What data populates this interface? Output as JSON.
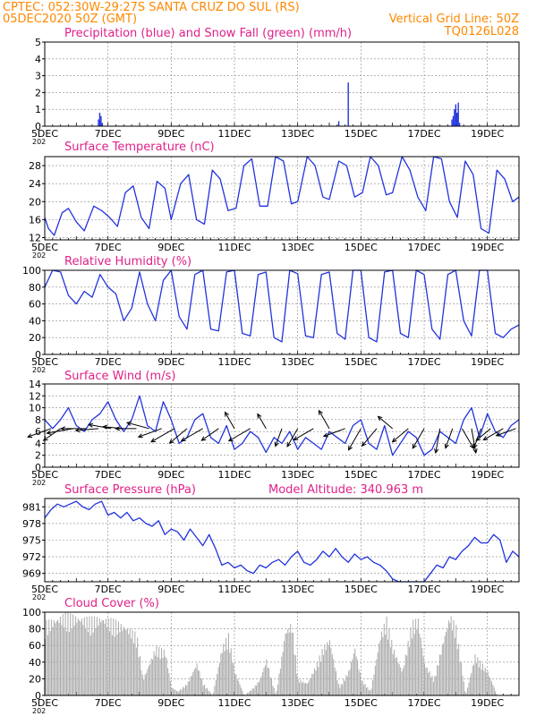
{
  "header": {
    "line1": "CPTEC:   052:30W-29:27S   SANTA CRUZ DO SUL (RS)",
    "line2_left": "05DEC2020 50Z (GMT)",
    "line2_right": "Vertical Grid Line: 50Z",
    "line3_right": "TQ0126L028",
    "color": "#ff8800"
  },
  "colors": {
    "title": "#e0208a",
    "line": "#2233dd",
    "snow": "#00aa00",
    "cloud": "#aaaaaa",
    "grid": "#888888"
  },
  "x_axis": {
    "tick_labels": [
      "5DEC",
      "7DEC",
      "9DEC",
      "11DEC",
      "13DEC",
      "15DEC",
      "17DEC",
      "19DEC"
    ],
    "tick_days": [
      0,
      2,
      4,
      6,
      8,
      10,
      12,
      14
    ],
    "year_fragment": "202",
    "range_days": [
      0,
      15
    ]
  },
  "chart_data": [
    {
      "id": "precip",
      "type": "bar",
      "title": "Precipitation (blue) and Snow Fall (green) (mm/h)",
      "ylim": [
        0,
        5
      ],
      "yticks": [
        0,
        1,
        2,
        3,
        4,
        5
      ],
      "ytick_labels": [
        "0",
        "1",
        "2",
        "3",
        "4",
        "5"
      ],
      "grid": true,
      "x_days": [
        1.7,
        1.74,
        1.78,
        1.82,
        9.3,
        9.6,
        12.88,
        12.92,
        12.96,
        13.0,
        13.04,
        13.08,
        13.12
      ],
      "values": [
        0.4,
        0.8,
        0.6,
        0.2,
        0.3,
        2.6,
        0.4,
        0.6,
        1.0,
        1.3,
        0.8,
        1.4,
        0.2
      ],
      "snow": []
    },
    {
      "id": "temp",
      "type": "line",
      "title": "Surface Temperature (nC)",
      "ylim": [
        11.5,
        30
      ],
      "yticks": [
        12,
        16,
        20,
        24,
        28
      ],
      "ytick_labels": [
        "12",
        "16",
        "20",
        "24",
        "28"
      ],
      "grid": true,
      "x_days": [
        0,
        0.12,
        0.3,
        0.55,
        0.75,
        1.0,
        1.25,
        1.55,
        1.8,
        2.05,
        2.3,
        2.55,
        2.8,
        3.05,
        3.3,
        3.55,
        3.8,
        4.0,
        4.3,
        4.55,
        4.8,
        5.05,
        5.3,
        5.55,
        5.8,
        6.05,
        6.3,
        6.55,
        6.8,
        7.05,
        7.3,
        7.55,
        7.8,
        8.0,
        8.3,
        8.55,
        8.8,
        9.0,
        9.3,
        9.55,
        9.8,
        10.05,
        10.3,
        10.55,
        10.8,
        11.0,
        11.3,
        11.55,
        11.8,
        12.05,
        12.3,
        12.55,
        12.8,
        13.05,
        13.3,
        13.55,
        13.8,
        14.05,
        14.3,
        14.55,
        14.8,
        15.0
      ],
      "values": [
        16.5,
        14.0,
        12.5,
        17.5,
        18.5,
        15.5,
        13.5,
        19.0,
        18.0,
        16.5,
        14.5,
        22.0,
        23.5,
        16.5,
        14.0,
        24.5,
        23.0,
        16.0,
        24.0,
        26.0,
        16.0,
        15.0,
        27.0,
        25.0,
        18.0,
        18.5,
        28.0,
        29.5,
        19.0,
        19.0,
        30.0,
        29.0,
        19.5,
        20.0,
        30.0,
        28.0,
        21.0,
        20.5,
        29.0,
        28.0,
        21.0,
        22.0,
        30.0,
        28.0,
        21.5,
        22.0,
        30.0,
        27.0,
        21.0,
        18.0,
        30.0,
        29.5,
        20.0,
        16.5,
        29.0,
        26.0,
        14.0,
        13.0,
        27.0,
        25.0,
        20.0,
        21.0
      ]
    },
    {
      "id": "rh",
      "type": "line",
      "title": "Relative Humidity (%)",
      "ylim": [
        0,
        100
      ],
      "yticks": [
        0,
        20,
        40,
        60,
        80,
        100
      ],
      "ytick_labels": [
        "0",
        "20",
        "40",
        "60",
        "80",
        "100"
      ],
      "grid": true,
      "x_days": [
        0,
        0.25,
        0.5,
        0.75,
        1.0,
        1.25,
        1.5,
        1.75,
        2.0,
        2.25,
        2.5,
        2.75,
        3.0,
        3.25,
        3.5,
        3.75,
        4.0,
        4.25,
        4.5,
        4.75,
        5.0,
        5.25,
        5.5,
        5.75,
        6.0,
        6.25,
        6.5,
        6.75,
        7.0,
        7.25,
        7.5,
        7.75,
        8.0,
        8.25,
        8.5,
        8.75,
        9.0,
        9.25,
        9.5,
        9.75,
        10.0,
        10.25,
        10.5,
        10.75,
        11.0,
        11.25,
        11.5,
        11.75,
        12.0,
        12.25,
        12.5,
        12.75,
        13.0,
        13.25,
        13.5,
        13.75,
        14.0,
        14.25,
        14.5,
        14.75,
        15.0
      ],
      "values": [
        80,
        100,
        98,
        70,
        60,
        75,
        68,
        95,
        80,
        72,
        40,
        55,
        98,
        60,
        40,
        88,
        100,
        45,
        30,
        95,
        100,
        30,
        28,
        98,
        100,
        25,
        22,
        95,
        98,
        20,
        15,
        100,
        96,
        22,
        20,
        95,
        98,
        25,
        18,
        100,
        100,
        20,
        15,
        98,
        100,
        25,
        20,
        100,
        95,
        30,
        18,
        95,
        100,
        40,
        22,
        100,
        100,
        25,
        20,
        30,
        35
      ]
    },
    {
      "id": "wind",
      "type": "line",
      "title": "Surface Wind (m/s)",
      "ylim": [
        0,
        14
      ],
      "yticks": [
        0,
        2,
        4,
        6,
        8,
        10,
        12,
        14
      ],
      "ytick_labels": [
        "0",
        "2",
        "4",
        "6",
        "8",
        "10",
        "12",
        "14"
      ],
      "grid": true,
      "x_days": [
        0,
        0.25,
        0.5,
        0.75,
        1.0,
        1.25,
        1.5,
        1.75,
        2.0,
        2.25,
        2.5,
        2.75,
        3.0,
        3.25,
        3.5,
        3.75,
        4.0,
        4.25,
        4.5,
        4.75,
        5.0,
        5.25,
        5.5,
        5.75,
        6.0,
        6.25,
        6.5,
        6.75,
        7.0,
        7.25,
        7.5,
        7.75,
        8.0,
        8.25,
        8.5,
        8.75,
        9.0,
        9.25,
        9.5,
        9.75,
        10.0,
        10.25,
        10.5,
        10.75,
        11.0,
        11.25,
        11.5,
        11.75,
        12.0,
        12.25,
        12.5,
        12.75,
        13.0,
        13.25,
        13.5,
        13.75,
        14.0,
        14.25,
        14.5,
        14.75,
        15.0
      ],
      "values": [
        8,
        6.5,
        8,
        10,
        7,
        6,
        8,
        9,
        11,
        8,
        6,
        8,
        12,
        7,
        6,
        11,
        8,
        4,
        5,
        8,
        9,
        5,
        4,
        7,
        3,
        4,
        6,
        5,
        2.5,
        5,
        4,
        6,
        3,
        5,
        4,
        3,
        6,
        5,
        4,
        7,
        8,
        4,
        3,
        7,
        2,
        4,
        6,
        5,
        2,
        3,
        6,
        5,
        4,
        8,
        10,
        5,
        9,
        6,
        5,
        7,
        8
      ],
      "arrows_days": [
        0.2,
        0.5,
        0.9,
        1.3,
        1.7,
        2.1,
        2.5,
        2.9,
        3.3,
        3.7,
        4.1,
        4.5,
        5.0,
        5.5,
        6.0,
        6.5,
        7.0,
        7.5,
        8.0,
        8.5,
        9.0,
        9.5,
        10.0,
        10.5,
        11.0,
        11.5,
        12.0,
        12.5,
        12.9,
        13.2,
        13.5,
        13.8,
        14.1,
        14.5,
        14.9
      ],
      "arrows_dir_deg": [
        200,
        215,
        190,
        180,
        185,
        170,
        175,
        180,
        165,
        200,
        210,
        220,
        210,
        215,
        120,
        210,
        120,
        250,
        240,
        210,
        120,
        200,
        240,
        230,
        140,
        220,
        240,
        260,
        250,
        300,
        280,
        250,
        220,
        210,
        200
      ],
      "arrows_speed": [
        8,
        6,
        9,
        8,
        7,
        7,
        6,
        6,
        7,
        8,
        9,
        7,
        8,
        6,
        5,
        8,
        4,
        5,
        6,
        7,
        6,
        7,
        8,
        7,
        5,
        6,
        7,
        8,
        6,
        7,
        8,
        6,
        5,
        7,
        6
      ]
    },
    {
      "id": "pressure",
      "type": "line",
      "title": "Surface Pressure (hPa)",
      "annotation": "Model Altitude: 340.963 m",
      "ylim": [
        967.5,
        982.5
      ],
      "yticks": [
        969,
        972,
        975,
        978,
        981
      ],
      "ytick_labels": [
        "969",
        "972",
        "975",
        "978",
        "981"
      ],
      "grid": true,
      "x_days": [
        0,
        0.2,
        0.4,
        0.6,
        0.8,
        1.0,
        1.2,
        1.4,
        1.6,
        1.8,
        2.0,
        2.2,
        2.4,
        2.6,
        2.8,
        3.0,
        3.2,
        3.4,
        3.6,
        3.8,
        4.0,
        4.2,
        4.4,
        4.6,
        4.8,
        5.0,
        5.2,
        5.4,
        5.6,
        5.8,
        6.0,
        6.2,
        6.4,
        6.6,
        6.8,
        7.0,
        7.2,
        7.4,
        7.6,
        7.8,
        8.0,
        8.2,
        8.4,
        8.6,
        8.8,
        9.0,
        9.2,
        9.4,
        9.6,
        9.8,
        10.0,
        10.2,
        10.4,
        10.6,
        10.8,
        11.0,
        11.2,
        11.4,
        11.6,
        11.8,
        12.0,
        12.2,
        12.4,
        12.6,
        12.8,
        13.0,
        13.2,
        13.4,
        13.6,
        13.8,
        14.0,
        14.2,
        14.4,
        14.6,
        14.8,
        15.0
      ],
      "values": [
        979,
        980.5,
        981.5,
        981.0,
        981.5,
        982.0,
        981.0,
        980.5,
        981.5,
        982.0,
        979.5,
        980.0,
        979.0,
        980.0,
        978.5,
        979.0,
        978.0,
        977.5,
        978.5,
        976.0,
        977.0,
        976.5,
        975.0,
        977.0,
        975.5,
        974.0,
        976.0,
        973.5,
        970.5,
        971.0,
        970.0,
        970.5,
        969.5,
        969.0,
        970.5,
        970.0,
        971.0,
        971.5,
        970.5,
        972.0,
        973.0,
        971.0,
        970.5,
        971.5,
        973.0,
        972.0,
        973.5,
        972.0,
        971.0,
        972.5,
        971.5,
        972.0,
        971.0,
        970.5,
        969.5,
        968.0,
        967.5,
        966.5,
        967.0,
        966.5,
        967.5,
        969.0,
        970.5,
        970.0,
        972.0,
        971.5,
        973.0,
        974.0,
        975.5,
        974.5,
        974.5,
        976.0,
        975.0,
        971.0,
        973.0,
        972.0
      ]
    },
    {
      "id": "cloud",
      "type": "bar",
      "title": "Cloud Cover (%)",
      "ylim": [
        0,
        100
      ],
      "yticks": [
        0,
        20,
        40,
        60,
        80,
        100
      ],
      "ytick_labels": [
        "0",
        "20",
        "40",
        "60",
        "80",
        "100"
      ],
      "grid": true,
      "bar_step_days": 0.04,
      "profile_x_days": [
        0,
        0.3,
        0.6,
        1.0,
        1.4,
        1.8,
        2.2,
        2.6,
        2.9,
        3.1,
        3.5,
        3.8,
        4.0,
        4.2,
        4.5,
        4.8,
        5.0,
        5.3,
        5.6,
        5.8,
        6.0,
        6.3,
        6.6,
        6.8,
        7.0,
        7.3,
        7.6,
        7.8,
        8.0,
        8.3,
        8.6,
        8.8,
        9.0,
        9.3,
        9.6,
        9.8,
        10.0,
        10.3,
        10.6,
        10.8,
        11.0,
        11.3,
        11.6,
        11.8,
        12.0,
        12.3,
        12.6,
        12.8,
        13.0,
        13.3,
        13.6,
        13.8,
        14.0,
        14.3,
        14.6,
        15.0
      ],
      "profile_values": [
        90,
        95,
        100,
        98,
        95,
        97,
        92,
        85,
        75,
        20,
        60,
        55,
        10,
        5,
        15,
        40,
        15,
        0,
        60,
        75,
        30,
        0,
        10,
        20,
        45,
        0,
        80,
        90,
        20,
        15,
        40,
        60,
        70,
        10,
        30,
        60,
        20,
        5,
        75,
        95,
        60,
        30,
        90,
        95,
        40,
        20,
        70,
        100,
        85,
        0,
        50,
        40,
        30,
        0,
        0,
        0
      ]
    }
  ]
}
